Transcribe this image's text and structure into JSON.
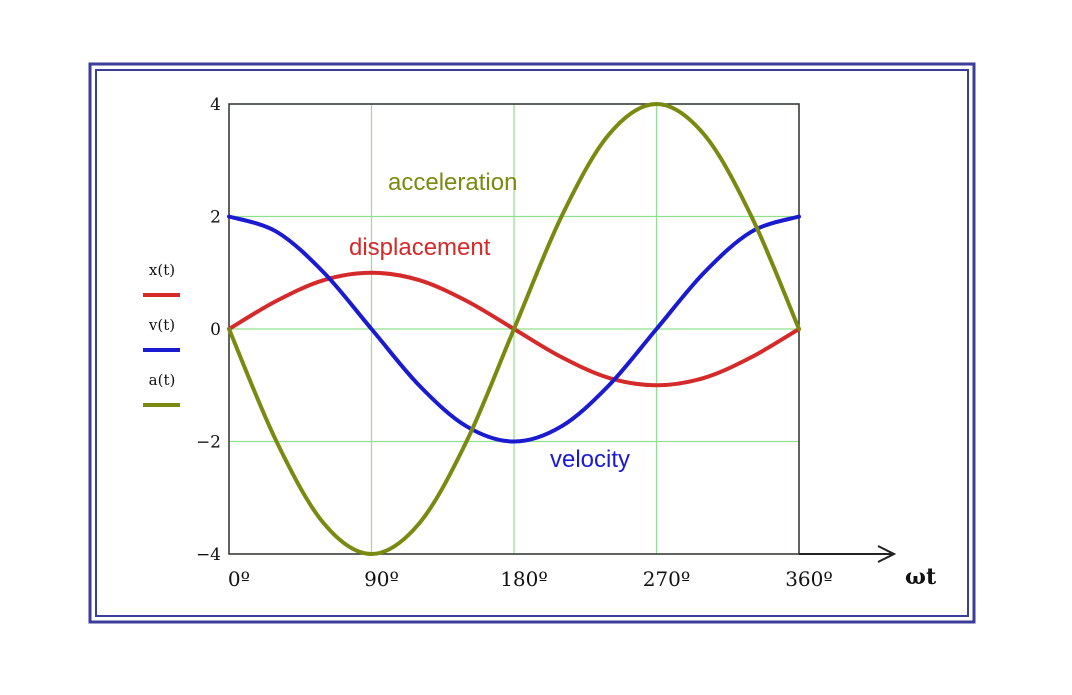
{
  "chart_data": {
    "type": "line",
    "title": "",
    "xlabel": "ωt",
    "ylabel": "",
    "x_unit": "degrees",
    "xlim": [
      0,
      360
    ],
    "ylim": [
      -4,
      4
    ],
    "grid": true,
    "x_ticks": [
      {
        "value": 0,
        "label": "0º"
      },
      {
        "value": 90,
        "label": "90º"
      },
      {
        "value": 180,
        "label": "180º"
      },
      {
        "value": 270,
        "label": "270º"
      },
      {
        "value": 360,
        "label": "360º"
      }
    ],
    "y_ticks": [
      {
        "value": 4,
        "label": "4"
      },
      {
        "value": 2,
        "label": "2"
      },
      {
        "value": 0,
        "label": "0"
      },
      {
        "value": -2,
        "label": "−2"
      },
      {
        "value": -4,
        "label": "−4"
      }
    ],
    "legend_position": "left",
    "series": [
      {
        "name": "x(t)",
        "annotation": "displacement",
        "color": "#d42a2a",
        "x": [
          0,
          30,
          60,
          90,
          120,
          150,
          180,
          210,
          240,
          270,
          300,
          330,
          360
        ],
        "values": [
          0,
          0.5,
          0.87,
          1,
          0.87,
          0.5,
          0,
          -0.5,
          -0.87,
          -1,
          -0.87,
          -0.5,
          0
        ]
      },
      {
        "name": "v(t)",
        "annotation": "velocity",
        "color": "#1a1ad0",
        "x": [
          0,
          30,
          60,
          90,
          120,
          150,
          180,
          210,
          240,
          270,
          300,
          330,
          360
        ],
        "values": [
          2,
          1.73,
          1,
          0,
          -1,
          -1.73,
          -2,
          -1.73,
          -1,
          0,
          1,
          1.73,
          2
        ]
      },
      {
        "name": "a(t)",
        "annotation": "acceleration",
        "color": "#7a8a10",
        "x": [
          0,
          30,
          60,
          90,
          120,
          150,
          180,
          210,
          240,
          270,
          300,
          330,
          360
        ],
        "values": [
          0,
          -2,
          -3.46,
          -4,
          -3.46,
          -2,
          0,
          2,
          3.46,
          4,
          3.46,
          2,
          0
        ]
      }
    ],
    "colors": {
      "frame": "#3c3c9a",
      "grid": "#90e090",
      "axes": "#333333"
    }
  }
}
